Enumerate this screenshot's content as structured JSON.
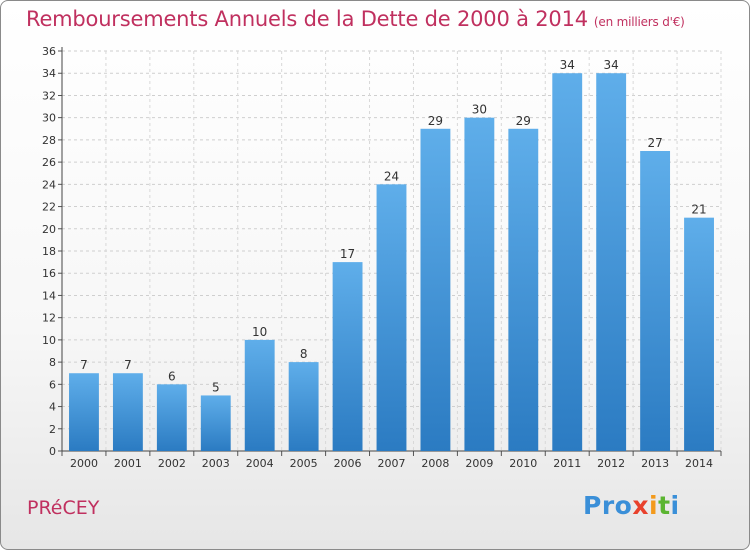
{
  "header": {
    "title": "Remboursements Annuels de la Dette de 2000 à 2014",
    "subtitle": "(en milliers d'€)"
  },
  "footer": {
    "place": "PRéCEY",
    "logo": [
      "P",
      "r",
      "o",
      "x",
      "i",
      "t",
      "i"
    ],
    "logo_colors": [
      "#3a8fd8",
      "#3a8fd8",
      "#3a8fd8",
      "#e8412c",
      "#f39a1c",
      "#5bb531",
      "#3a8fd8"
    ]
  },
  "colors": {
    "bar_light": "#5faeea",
    "bar_dark": "#2b7bc2",
    "title": "#c0305f"
  },
  "chart_data": {
    "type": "bar",
    "title": "Remboursements Annuels de la Dette de 2000 à 2014",
    "categories": [
      "2000",
      "2001",
      "2002",
      "2003",
      "2004",
      "2005",
      "2006",
      "2007",
      "2008",
      "2009",
      "2010",
      "2011",
      "2012",
      "2013",
      "2014"
    ],
    "values": [
      7,
      7,
      6,
      5,
      10,
      8,
      17,
      24,
      29,
      30,
      29,
      34,
      34,
      27,
      21
    ],
    "ylim": [
      0,
      36
    ],
    "yticks": [
      0,
      2,
      4,
      6,
      8,
      10,
      12,
      14,
      16,
      18,
      20,
      22,
      24,
      26,
      28,
      30,
      32,
      34,
      36
    ],
    "grid": true
  }
}
